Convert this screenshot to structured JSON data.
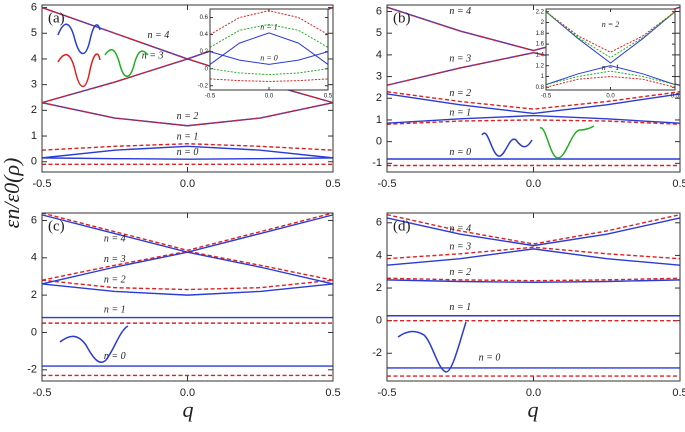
{
  "ylabel": "εn/ε0(ρ)",
  "xlabel": "q",
  "chart_data": [
    {
      "type": "line",
      "label": "(a)",
      "x": [
        -0.5,
        -0.25,
        0,
        0.25,
        0.5
      ],
      "xlim": [
        -0.5,
        0.5
      ],
      "xticks": [
        {
          "value": -0.5,
          "label": "-0.5"
        },
        {
          "value": 0,
          "label": "0.0"
        },
        {
          "value": 0.5,
          "label": "0.5"
        }
      ],
      "ylim": [
        -0.4,
        6.1
      ],
      "yticks": [
        0,
        1,
        2,
        3,
        4,
        5,
        6
      ],
      "series": [
        {
          "color": "#2a3bd6",
          "dash": false,
          "values": [
            0.15,
            0.12,
            0.1,
            0.12,
            0.15
          ]
        },
        {
          "color": "#e02020",
          "dash": true,
          "values": [
            -0.1,
            -0.1,
            -0.1,
            -0.1,
            -0.1
          ]
        },
        {
          "color": "#2a3bd6",
          "dash": false,
          "values": [
            0.15,
            0.45,
            0.6,
            0.45,
            0.15
          ]
        },
        {
          "color": "#e02020",
          "dash": true,
          "values": [
            0.45,
            0.6,
            0.7,
            0.6,
            0.45
          ]
        },
        {
          "color": "#2a3bd6",
          "dash": false,
          "values": [
            2.3,
            1.7,
            1.4,
            1.7,
            2.3
          ]
        },
        {
          "color": "#e02020",
          "dash": true,
          "values": [
            2.3,
            1.7,
            1.4,
            1.7,
            2.3
          ]
        },
        {
          "color": "#2a3bd6",
          "dash": false,
          "values": [
            2.3,
            3.1,
            4.0,
            3.1,
            2.3
          ]
        },
        {
          "color": "#e02020",
          "dash": true,
          "values": [
            2.3,
            3.1,
            4.0,
            3.1,
            2.3
          ]
        },
        {
          "color": "#2a3bd6",
          "dash": false,
          "values": [
            6.0,
            5.0,
            4.0,
            5.0,
            6.0
          ]
        },
        {
          "color": "#e02020",
          "dash": true,
          "values": [
            6.0,
            5.0,
            4.0,
            5.0,
            6.0
          ]
        }
      ],
      "annotations": [
        {
          "text": "n = 0",
          "x": 0.0,
          "y": 0.35
        },
        {
          "text": "n = 1",
          "x": 0.0,
          "y": 0.95
        },
        {
          "text": "n = 2",
          "x": 0.0,
          "y": 1.75
        },
        {
          "text": "n = 3",
          "x": -0.12,
          "y": 4.1
        },
        {
          "text": "n = 4",
          "x": -0.1,
          "y": 4.9
        }
      ],
      "inset": {
        "x": [
          -0.5,
          -0.25,
          0,
          0.25,
          0.5
        ],
        "xlim": [
          -0.5,
          0.5
        ],
        "xticks": [
          {
            "value": -0.5,
            "label": "-0.5"
          },
          {
            "value": 0,
            "label": "0.0"
          },
          {
            "value": 0.5,
            "label": "0.5"
          }
        ],
        "ylim": [
          -0.25,
          0.7
        ],
        "yticks": [
          -0.2,
          0,
          0.2,
          0.4,
          0.6
        ],
        "series": [
          {
            "color": "#2a3bd6",
            "dash": false,
            "values": [
              0.05,
              0.3,
              0.42,
              0.3,
              0.05
            ]
          },
          {
            "color": "#2a3bd6",
            "dash": false,
            "values": [
              0.2,
              0.1,
              0.05,
              0.1,
              0.2
            ]
          },
          {
            "color": "#e02020",
            "dash": true,
            "values": [
              0.4,
              0.6,
              0.68,
              0.6,
              0.4
            ]
          },
          {
            "color": "#20b020",
            "dash": true,
            "values": [
              0.25,
              0.45,
              0.52,
              0.45,
              0.25
            ]
          },
          {
            "color": "#20b020",
            "dash": true,
            "values": [
              0.0,
              -0.05,
              -0.07,
              -0.05,
              0.0
            ]
          },
          {
            "color": "#e02020",
            "dash": true,
            "values": [
              -0.12,
              -0.14,
              -0.15,
              -0.14,
              -0.12
            ]
          }
        ],
        "annotations": [
          {
            "text": "n = 1",
            "x": 0.0,
            "y": 0.48
          },
          {
            "text": "n = 0",
            "x": 0.0,
            "y": 0.12
          }
        ]
      }
    },
    {
      "type": "line",
      "label": "(b)",
      "x": [
        -0.5,
        -0.25,
        0,
        0.25,
        0.5
      ],
      "xlim": [
        -0.5,
        0.5
      ],
      "xticks": [
        {
          "value": -0.5,
          "label": "-0.5"
        },
        {
          "value": 0,
          "label": "0.0"
        },
        {
          "value": 0.5,
          "label": "0.5"
        }
      ],
      "ylim": [
        -1.4,
        6.3
      ],
      "yticks": [
        -1,
        0,
        1,
        2,
        3,
        4,
        5,
        6
      ],
      "series": [
        {
          "color": "#2a3bd6",
          "dash": false,
          "values": [
            -0.8,
            -0.8,
            -0.8,
            -0.8,
            -0.8
          ]
        },
        {
          "color": "#e02020",
          "dash": true,
          "values": [
            -1.1,
            -1.1,
            -1.1,
            -1.1,
            -1.1
          ]
        },
        {
          "color": "#2a3bd6",
          "dash": false,
          "values": [
            0.85,
            1.05,
            1.2,
            1.05,
            0.85
          ]
        },
        {
          "color": "#e02020",
          "dash": true,
          "values": [
            0.8,
            0.95,
            1.0,
            0.95,
            0.8
          ]
        },
        {
          "color": "#2a3bd6",
          "dash": false,
          "values": [
            2.2,
            1.7,
            1.3,
            1.7,
            2.2
          ]
        },
        {
          "color": "#e02020",
          "dash": true,
          "values": [
            2.3,
            1.85,
            1.5,
            1.85,
            2.3
          ]
        },
        {
          "color": "#2a3bd6",
          "dash": false,
          "values": [
            2.6,
            3.4,
            4.1,
            3.4,
            2.6
          ]
        },
        {
          "color": "#e02020",
          "dash": true,
          "values": [
            2.6,
            3.4,
            4.1,
            3.4,
            2.6
          ]
        },
        {
          "color": "#2a3bd6",
          "dash": false,
          "values": [
            6.2,
            5.1,
            4.2,
            5.1,
            6.2
          ]
        },
        {
          "color": "#e02020",
          "dash": true,
          "values": [
            6.2,
            5.1,
            4.2,
            5.1,
            6.2
          ]
        }
      ],
      "annotations": [
        {
          "text": "n = 0",
          "x": -0.25,
          "y": -0.5
        },
        {
          "text": "n = 1",
          "x": -0.25,
          "y": 1.3
        },
        {
          "text": "n = 2",
          "x": -0.25,
          "y": 2.2
        },
        {
          "text": "n = 3",
          "x": -0.25,
          "y": 3.8
        },
        {
          "text": "n = 4",
          "x": -0.25,
          "y": 6.0
        }
      ],
      "inset": {
        "x": [
          -0.5,
          -0.25,
          0,
          0.25,
          0.5
        ],
        "xlim": [
          -0.5,
          0.5
        ],
        "xticks": [
          {
            "value": -0.5,
            "label": "-0.5"
          },
          {
            "value": 0,
            "label": "0.0"
          },
          {
            "value": 0.5,
            "label": "0.5"
          }
        ],
        "ylim": [
          0.75,
          2.25
        ],
        "yticks": [
          0.8,
          1.0,
          1.2,
          1.4,
          1.6,
          1.8,
          2.0,
          2.2
        ],
        "series": [
          {
            "color": "#2a3bd6",
            "dash": false,
            "values": [
              2.2,
              1.7,
              1.25,
              1.7,
              2.2
            ]
          },
          {
            "color": "#2a3bd6",
            "dash": false,
            "values": [
              0.85,
              1.05,
              1.2,
              1.05,
              0.85
            ]
          },
          {
            "color": "#e02020",
            "dash": true,
            "values": [
              2.2,
              1.75,
              1.45,
              1.75,
              2.2
            ]
          },
          {
            "color": "#20b020",
            "dash": true,
            "values": [
              2.2,
              1.72,
              1.35,
              1.72,
              2.2
            ]
          },
          {
            "color": "#20b020",
            "dash": true,
            "values": [
              0.85,
              1.0,
              1.1,
              1.0,
              0.85
            ]
          },
          {
            "color": "#e02020",
            "dash": true,
            "values": [
              0.8,
              0.95,
              1.0,
              0.95,
              0.8
            ]
          }
        ],
        "annotations": [
          {
            "text": "n = 2",
            "x": 0.0,
            "y": 1.95
          },
          {
            "text": "n = 1",
            "x": 0.0,
            "y": 1.15
          }
        ]
      }
    },
    {
      "type": "line",
      "label": "(c)",
      "x": [
        -0.5,
        -0.25,
        0,
        0.25,
        0.5
      ],
      "xlim": [
        -0.5,
        0.5
      ],
      "xticks": [
        {
          "value": -0.5,
          "label": "-0.5"
        },
        {
          "value": 0,
          "label": "0.0"
        },
        {
          "value": 0.5,
          "label": "0.5"
        }
      ],
      "ylim": [
        -2.6,
        6.4
      ],
      "yticks": [
        -2,
        0,
        2,
        4,
        6
      ],
      "series": [
        {
          "color": "#2a3bd6",
          "dash": false,
          "values": [
            -1.8,
            -1.8,
            -1.8,
            -1.8,
            -1.8
          ]
        },
        {
          "color": "#e02020",
          "dash": true,
          "values": [
            -2.3,
            -2.3,
            -2.3,
            -2.3,
            -2.3
          ]
        },
        {
          "color": "#2a3bd6",
          "dash": false,
          "values": [
            0.8,
            0.8,
            0.8,
            0.8,
            0.8
          ]
        },
        {
          "color": "#e02020",
          "dash": true,
          "values": [
            0.5,
            0.5,
            0.5,
            0.5,
            0.5
          ]
        },
        {
          "color": "#2a3bd6",
          "dash": false,
          "values": [
            2.6,
            2.2,
            2.0,
            2.2,
            2.6
          ]
        },
        {
          "color": "#e02020",
          "dash": true,
          "values": [
            2.8,
            2.4,
            2.3,
            2.4,
            2.8
          ]
        },
        {
          "color": "#2a3bd6",
          "dash": false,
          "values": [
            2.6,
            3.5,
            4.3,
            3.5,
            2.6
          ]
        },
        {
          "color": "#e02020",
          "dash": true,
          "values": [
            2.8,
            3.6,
            4.35,
            3.6,
            2.8
          ]
        },
        {
          "color": "#2a3bd6",
          "dash": false,
          "values": [
            6.3,
            5.3,
            4.3,
            5.3,
            6.3
          ]
        },
        {
          "color": "#e02020",
          "dash": true,
          "values": [
            6.4,
            5.4,
            4.4,
            5.4,
            6.4
          ]
        }
      ],
      "annotations": [
        {
          "text": "n = 0",
          "x": -0.25,
          "y": -1.3
        },
        {
          "text": "n = 1",
          "x": -0.25,
          "y": 1.2
        },
        {
          "text": "n = 2",
          "x": -0.25,
          "y": 2.8
        },
        {
          "text": "n = 3",
          "x": -0.25,
          "y": 3.9
        },
        {
          "text": "n = 4",
          "x": -0.25,
          "y": 5.0
        }
      ]
    },
    {
      "type": "line",
      "label": "(d)",
      "x": [
        -0.5,
        -0.25,
        0,
        0.25,
        0.5
      ],
      "xlim": [
        -0.5,
        0.5
      ],
      "xticks": [
        {
          "value": -0.5,
          "label": "-0.5"
        },
        {
          "value": 0,
          "label": "0.0"
        },
        {
          "value": 0.5,
          "label": "0.5"
        }
      ],
      "ylim": [
        -3.7,
        6.6
      ],
      "yticks": [
        -2,
        0,
        2,
        4,
        6
      ],
      "series": [
        {
          "color": "#2a3bd6",
          "dash": false,
          "values": [
            -2.9,
            -2.9,
            -2.9,
            -2.9,
            -2.9
          ]
        },
        {
          "color": "#e02020",
          "dash": true,
          "values": [
            -3.4,
            -3.4,
            -3.4,
            -3.4,
            -3.4
          ]
        },
        {
          "color": "#2a3bd6",
          "dash": false,
          "values": [
            0.3,
            0.3,
            0.3,
            0.3,
            0.3
          ]
        },
        {
          "color": "#e02020",
          "dash": true,
          "values": [
            0.0,
            0.0,
            0.0,
            0.0,
            0.0
          ]
        },
        {
          "color": "#2a3bd6",
          "dash": false,
          "values": [
            2.5,
            2.4,
            2.35,
            2.4,
            2.5
          ]
        },
        {
          "color": "#e02020",
          "dash": true,
          "values": [
            2.6,
            2.5,
            2.45,
            2.5,
            2.6
          ]
        },
        {
          "color": "#2a3bd6",
          "dash": false,
          "values": [
            3.4,
            3.8,
            4.4,
            3.8,
            3.4
          ]
        },
        {
          "color": "#e02020",
          "dash": true,
          "values": [
            3.8,
            4.1,
            4.5,
            4.1,
            3.8
          ]
        },
        {
          "color": "#2a3bd6",
          "dash": false,
          "values": [
            6.3,
            5.3,
            4.6,
            5.3,
            6.3
          ]
        },
        {
          "color": "#e02020",
          "dash": true,
          "values": [
            6.5,
            5.5,
            4.7,
            5.5,
            6.5
          ]
        }
      ],
      "annotations": [
        {
          "text": "n = 0",
          "x": -0.15,
          "y": -2.3
        },
        {
          "text": "n = 1",
          "x": -0.25,
          "y": 0.8
        },
        {
          "text": "n = 2",
          "x": -0.25,
          "y": 2.95
        },
        {
          "text": "n = 3",
          "x": -0.25,
          "y": 4.5
        },
        {
          "text": "n = 4",
          "x": -0.25,
          "y": 5.6
        }
      ]
    }
  ]
}
